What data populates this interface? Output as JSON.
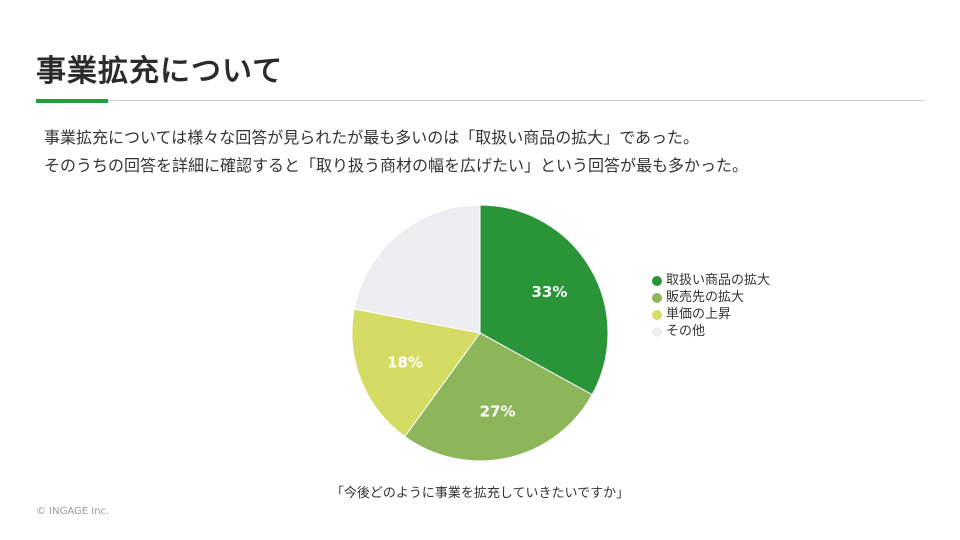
{
  "slide": {
    "title": "事業拡充について",
    "accent_color": "#2a9a3c",
    "lead_lines": [
      "事業拡充については様々な回答が見られたが最も多いのは「取扱い商品の拡大」であった。",
      "そのうちの回答を詳細に確認すると「取り扱う商材の幅を広げたい」という回答が最も多かった。"
    ],
    "copyright": "© INGAGE Inc."
  },
  "chart_data": {
    "type": "pie",
    "title": "",
    "caption": "「今後どのように事業を拡充していきたいですか」",
    "legend_position": "right",
    "slices": [
      {
        "name": "取扱い商品の拡大",
        "value": 33,
        "label": "33%",
        "color": "#2a9438"
      },
      {
        "name": "販売先の拡大",
        "value": 27,
        "label": "27%",
        "color": "#8db65a"
      },
      {
        "name": "単価の上昇",
        "value": 18,
        "label": "18%",
        "color": "#d4dc63"
      },
      {
        "name": "その他",
        "value": 22,
        "label": "",
        "color": "#eeeef2"
      }
    ]
  }
}
